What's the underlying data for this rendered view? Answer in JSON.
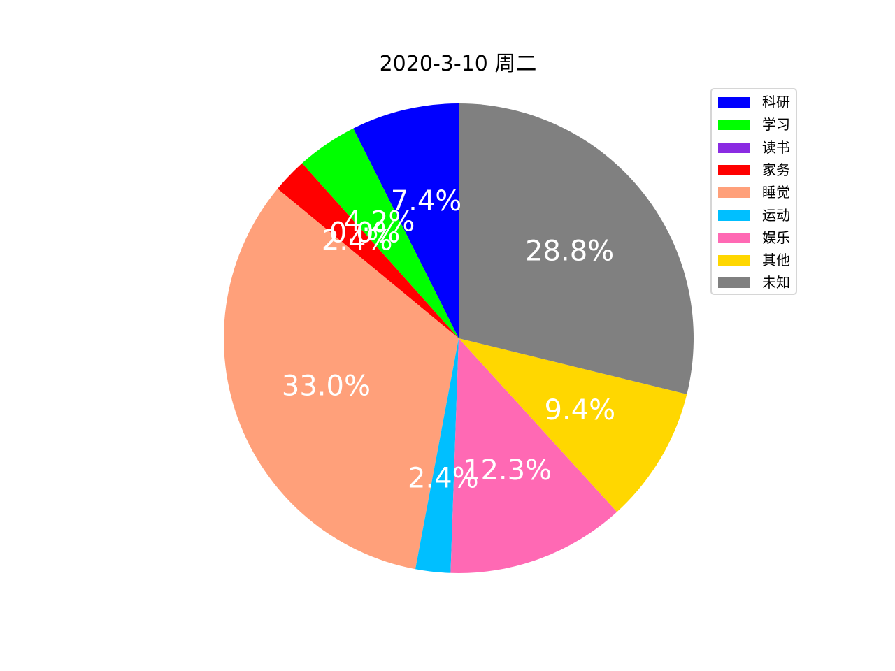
{
  "chart_data": {
    "type": "pie",
    "title": "2020-3-10 周二",
    "start_angle_deg": 90,
    "direction": "counterclockwise",
    "legend_position": "top-right",
    "slices": [
      {
        "label": "科研",
        "value": 7.4,
        "pct_label": "7.4%",
        "color": "#0000FF"
      },
      {
        "label": "学习",
        "value": 4.2,
        "pct_label": "4.2%",
        "color": "#00FF00"
      },
      {
        "label": "读书",
        "value": 0.0,
        "pct_label": "0.0%",
        "color": "#8A2BE2"
      },
      {
        "label": "家务",
        "value": 2.4,
        "pct_label": "2.4%",
        "color": "#FF0000"
      },
      {
        "label": "睡觉",
        "value": 33.0,
        "pct_label": "33.0%",
        "color": "#FFA07A"
      },
      {
        "label": "运动",
        "value": 2.4,
        "pct_label": "2.4%",
        "color": "#00BFFF"
      },
      {
        "label": "娱乐",
        "value": 12.3,
        "pct_label": "12.3%",
        "color": "#FF69B4"
      },
      {
        "label": "其他",
        "value": 9.4,
        "pct_label": "9.4%",
        "color": "#FFD700"
      },
      {
        "label": "未知",
        "value": 28.8,
        "pct_label": "28.8%",
        "color": "#808080"
      }
    ]
  }
}
